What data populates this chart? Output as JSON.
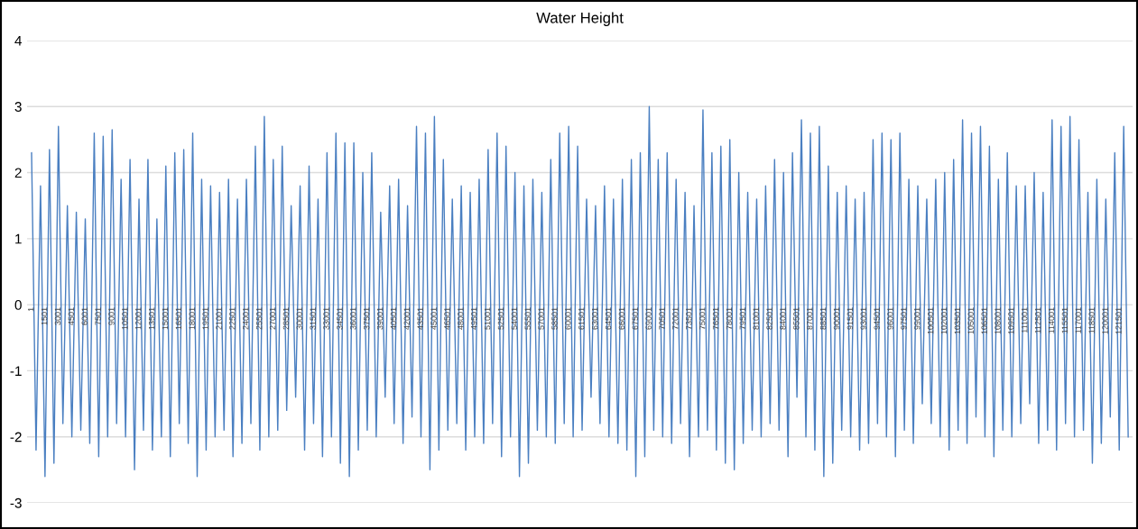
{
  "chart_data": {
    "type": "line",
    "title": "Water Height",
    "x": [
      1,
      501,
      1001,
      1501,
      2001,
      2501,
      3001,
      3501,
      4001,
      4501,
      5001,
      5501,
      6001,
      6501,
      7001,
      7501,
      8001,
      8501,
      9001,
      9501,
      10001,
      10501,
      11001,
      11501,
      12001,
      12501,
      13001,
      13501,
      14001,
      14501,
      15001,
      15501,
      16001,
      16501,
      17001,
      17501,
      18001,
      18501,
      19001,
      19501,
      20001,
      20501,
      21001,
      21501,
      22001,
      22501,
      23001,
      23501,
      24001,
      24501,
      25001,
      25501,
      26001,
      26501,
      27001,
      27501,
      28001,
      28501,
      29001,
      29501,
      30001,
      30501,
      31001,
      31501,
      32001,
      32501,
      33001,
      33501,
      34001,
      34501,
      35001,
      35501,
      36001,
      36501,
      37001,
      37501,
      38001,
      38501,
      39001,
      39501,
      40001,
      40501,
      41001,
      41501,
      42001,
      42501,
      43001,
      43501,
      44001,
      44501,
      45001,
      45501,
      46001,
      46501,
      47001,
      47501,
      48001,
      48501,
      49001,
      49501,
      50001,
      50501,
      51001,
      51501,
      52001,
      52501,
      53001,
      53501,
      54001,
      54501,
      55001,
      55501,
      56001,
      56501,
      57001,
      57501,
      58001,
      58501,
      59001,
      59501,
      60001,
      60501,
      61001,
      61501,
      62001,
      62501,
      63001,
      63501,
      64001,
      64501,
      65001,
      65501,
      66001,
      66501,
      67001,
      67501,
      68001,
      68501,
      69001,
      69501,
      70001,
      70501,
      71001,
      71501,
      72001,
      72501,
      73001,
      73501,
      74001,
      74501,
      75001,
      75501,
      76001,
      76501,
      77001,
      77501,
      78001,
      78501,
      79001,
      79501,
      80001,
      80501,
      81001,
      81501,
      82001,
      82501,
      83001,
      83501,
      84001,
      84501,
      85001,
      85501,
      86001,
      86501,
      87001,
      87501,
      88001,
      88501,
      89001,
      89501,
      90001,
      90501,
      91001,
      91501,
      92001,
      92501,
      93001,
      93501,
      94001,
      94501,
      95001,
      95501,
      96001,
      96501,
      97001,
      97501,
      98001,
      98501,
      99001,
      99501,
      100001,
      100501,
      101001,
      101501,
      102001,
      102501,
      103001,
      103501,
      104001,
      104501,
      105001,
      105501,
      106001,
      106501,
      107001,
      107501,
      108001,
      108501,
      109001,
      109501,
      110001,
      110501,
      111001,
      111501,
      112001,
      112501,
      113001,
      113501,
      114001,
      114501,
      115001,
      115501,
      116001,
      116501,
      117001,
      117501,
      118001,
      118501,
      119001,
      119501,
      120001,
      120501,
      121001,
      121501,
      122001,
      122501
    ],
    "values": [
      2.3,
      -2.2,
      1.8,
      -2.6,
      2.35,
      -2.4,
      2.7,
      -1.8,
      1.5,
      -2.0,
      1.4,
      -1.9,
      1.3,
      -2.1,
      2.6,
      -2.3,
      2.55,
      -2.0,
      2.65,
      -1.8,
      1.9,
      -2.0,
      2.2,
      -2.5,
      1.6,
      -1.9,
      2.2,
      -2.2,
      1.3,
      -2.0,
      2.1,
      -2.3,
      2.3,
      -1.8,
      2.35,
      -2.1,
      2.6,
      -2.6,
      1.9,
      -2.2,
      1.8,
      -2.0,
      1.7,
      -1.9,
      1.9,
      -2.3,
      1.6,
      -2.1,
      1.9,
      -1.8,
      2.4,
      -2.2,
      2.85,
      -2.0,
      2.2,
      -1.9,
      2.4,
      -1.6,
      1.5,
      -1.4,
      1.8,
      -2.2,
      2.1,
      -1.8,
      1.6,
      -2.3,
      2.3,
      -2.0,
      2.6,
      -2.4,
      2.45,
      -2.6,
      2.45,
      -2.2,
      2.0,
      -1.9,
      2.3,
      -2.0,
      1.4,
      -1.4,
      1.8,
      -1.8,
      1.9,
      -2.1,
      1.5,
      -1.7,
      2.7,
      -2.0,
      2.6,
      -2.5,
      2.85,
      -2.2,
      2.2,
      -1.9,
      1.6,
      -1.8,
      1.8,
      -2.2,
      1.7,
      -2.0,
      1.9,
      -2.1,
      2.35,
      -1.8,
      2.6,
      -2.3,
      2.4,
      -2.0,
      2.0,
      -2.6,
      1.8,
      -2.4,
      1.9,
      -1.9,
      1.7,
      -2.0,
      2.2,
      -2.1,
      2.6,
      -1.8,
      2.7,
      -2.0,
      2.4,
      -1.9,
      1.6,
      -1.4,
      1.5,
      -1.8,
      1.8,
      -2.0,
      1.6,
      -2.1,
      1.9,
      -2.2,
      2.2,
      -2.6,
      2.3,
      -2.3,
      3.0,
      -1.9,
      2.2,
      -2.0,
      2.3,
      -2.1,
      1.9,
      -1.8,
      1.7,
      -2.3,
      1.5,
      -2.0,
      2.95,
      -1.9,
      2.3,
      -2.2,
      2.4,
      -2.4,
      2.5,
      -2.5,
      2.0,
      -2.1,
      1.7,
      -1.9,
      1.6,
      -2.0,
      1.8,
      -1.8,
      2.2,
      -1.9,
      2.0,
      -2.3,
      2.3,
      -1.4,
      2.8,
      -2.0,
      2.6,
      -2.2,
      2.7,
      -2.6,
      2.1,
      -2.4,
      1.7,
      -1.9,
      1.8,
      -2.0,
      1.6,
      -2.2,
      1.7,
      -2.1,
      2.5,
      -1.8,
      2.6,
      -2.0,
      2.5,
      -2.3,
      2.6,
      -1.9,
      1.9,
      -2.1,
      1.8,
      -1.5,
      1.6,
      -1.8,
      1.9,
      -2.0,
      2.0,
      -2.2,
      2.2,
      -1.9,
      2.8,
      -2.1,
      2.6,
      -1.7,
      2.7,
      -2.0,
      2.4,
      -2.3,
      1.9,
      -1.9,
      2.3,
      -2.0,
      1.8,
      -1.8,
      1.8,
      -1.5,
      2.0,
      -2.1,
      1.7,
      -1.9,
      2.8,
      -2.2,
      2.7,
      -1.8,
      2.85,
      -2.0,
      2.5,
      -1.9,
      1.7,
      -2.4,
      1.9,
      -2.1,
      1.6,
      -1.7,
      2.3,
      -2.2,
      2.7,
      -2.0
    ],
    "color": "#4a7fc1",
    "xlim": [
      -500,
      123000
    ],
    "xticks": [
      1,
      1501,
      3001,
      4501,
      6001,
      7501,
      9001,
      10501,
      12001,
      13501,
      15001,
      16501,
      18001,
      19501,
      21001,
      22501,
      24001,
      25501,
      27001,
      28501,
      30001,
      31501,
      33001,
      34501,
      36001,
      37501,
      39001,
      40501,
      42001,
      43501,
      45001,
      46501,
      48001,
      49501,
      51001,
      52501,
      54001,
      55501,
      57001,
      58501,
      60001,
      61501,
      63001,
      64501,
      66001,
      67501,
      69001,
      70501,
      72001,
      73501,
      75001,
      76501,
      78001,
      79501,
      81001,
      82501,
      84001,
      85501,
      87001,
      88501,
      90001,
      91501,
      93001,
      94501,
      96001,
      97501,
      99001,
      100501,
      102001,
      103501,
      105001,
      106501,
      108001,
      109501,
      111001,
      112501,
      114001,
      115501,
      117001,
      118501,
      120001,
      121501
    ],
    "ylim": [
      -3,
      4
    ],
    "yticks": [
      -3,
      -2,
      -1,
      0,
      1,
      2,
      3,
      4
    ],
    "grid": "y",
    "legend": false,
    "marker": "none",
    "line_style": "solid"
  }
}
